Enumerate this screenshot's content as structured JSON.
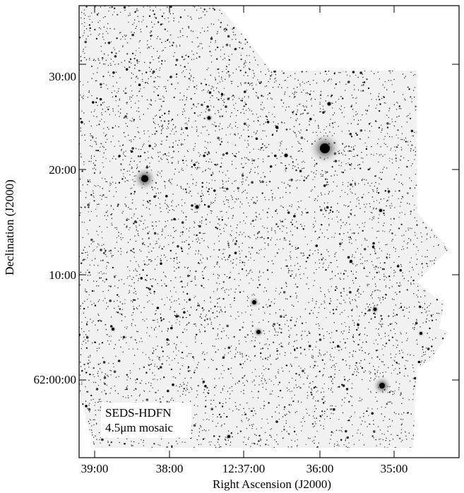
{
  "figure": {
    "overlay_line1": "SEDS-HDFN",
    "overlay_line2": "4.5μm mosaic",
    "xlabel": "Right Ascension (J2000)",
    "ylabel": "Declination (J2000)",
    "yticks": [
      "30:00",
      "20:00",
      "10:00",
      "62:00:00"
    ],
    "xticks": [
      "39:00",
      "38:00",
      "12:37:00",
      "36:00",
      "35:00"
    ],
    "colors": {
      "background": "#ffffff",
      "sky": "#f2f2f2",
      "source": "#000000",
      "frame": "#000000"
    }
  }
}
